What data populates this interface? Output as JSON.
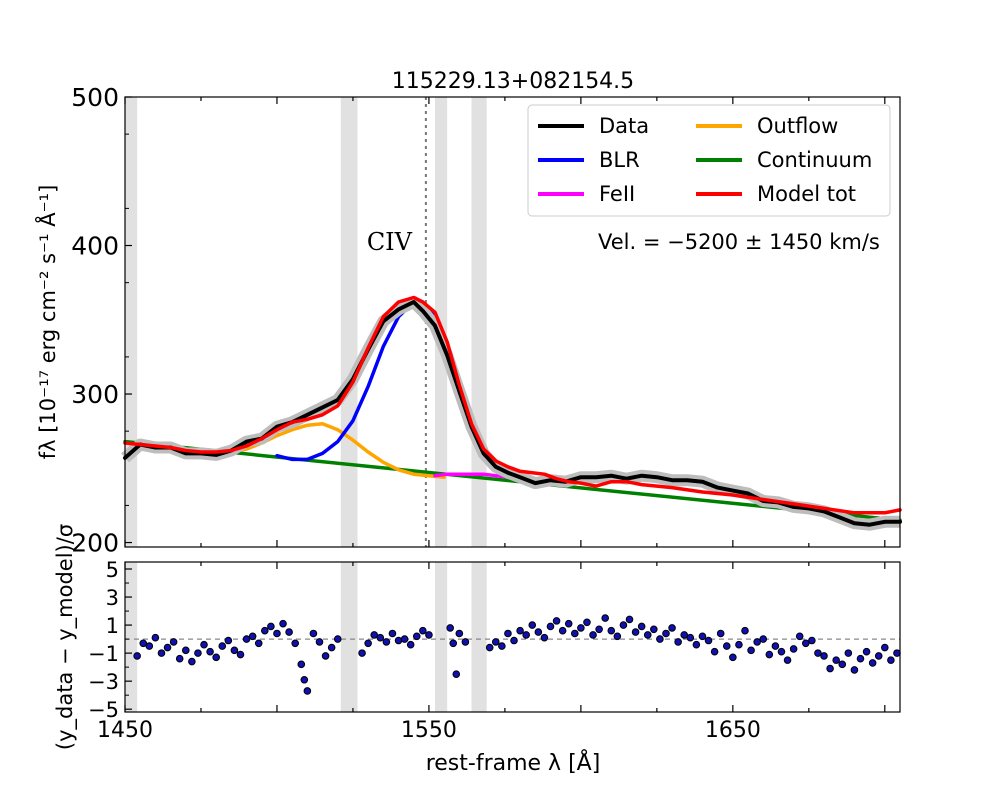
{
  "chart_data": {
    "type": "line",
    "title": "115229.13+082154.5",
    "xlabel": "rest-frame λ [Å]",
    "ylabel_top": "fλ [10⁻¹⁷ erg cm⁻² s⁻¹ Å⁻¹]",
    "ylabel_bottom": "(y_data − y_model)/σ",
    "xlim": [
      1450,
      1705
    ],
    "ylim_top": [
      197,
      500
    ],
    "ylim_bottom": [
      -5.2,
      5.5
    ],
    "xticks": [
      "1450",
      "1550",
      "1650"
    ],
    "xtick_values": [
      1450,
      1550,
      1650
    ],
    "yticks_top": [
      "200",
      "300",
      "400",
      "500"
    ],
    "ytick_values_top": [
      200,
      300,
      400,
      500
    ],
    "yticks_bottom": [
      "5",
      "3",
      "1",
      "−1",
      "−3",
      "−5"
    ],
    "ytick_values_bottom": [
      5,
      3,
      1,
      -1,
      -3,
      -5
    ],
    "line_label": "CIV",
    "line_label_pos": [
      1537,
      397
    ],
    "velocity_annotation": "Vel. = −5200 ± 1450 km/s",
    "line_center": 1549,
    "masked_regions": [
      [
        1450,
        1454
      ],
      [
        1521,
        1526.5
      ],
      [
        1552,
        1556
      ],
      [
        1564,
        1569
      ]
    ],
    "legend": [
      {
        "label": "Data",
        "color": "#000000"
      },
      {
        "label": "BLR",
        "color": "#0000ff"
      },
      {
        "label": "FeII",
        "color": "#ff00ff"
      },
      {
        "label": "Outflow",
        "color": "#ffa500"
      },
      {
        "label": "Continuum",
        "color": "#008000"
      },
      {
        "label": "Model tot",
        "color": "#ff0000"
      }
    ],
    "series": [
      {
        "name": "Data",
        "color": "#000000",
        "x": [
          1450,
          1455,
          1460,
          1465,
          1470,
          1475,
          1480,
          1485,
          1490,
          1495,
          1500,
          1505,
          1510,
          1515,
          1520,
          1525,
          1530,
          1535,
          1540,
          1545,
          1548,
          1552,
          1556,
          1560,
          1564,
          1568,
          1572,
          1576,
          1580,
          1585,
          1590,
          1595,
          1600,
          1605,
          1610,
          1615,
          1620,
          1625,
          1630,
          1635,
          1640,
          1645,
          1650,
          1655,
          1660,
          1665,
          1670,
          1675,
          1680,
          1685,
          1690,
          1695,
          1700,
          1705
        ],
        "y": [
          257,
          266,
          264,
          264,
          260,
          260,
          259,
          262,
          268,
          270,
          278,
          281,
          286,
          291,
          296,
          310,
          330,
          349,
          357,
          362,
          356,
          346,
          326,
          302,
          278,
          260,
          251,
          247,
          244,
          240,
          242,
          241,
          244,
          244,
          245,
          243,
          245,
          244,
          242,
          242,
          241,
          237,
          235,
          233,
          228,
          227,
          224,
          223,
          221,
          217,
          213,
          212,
          214,
          214
        ]
      },
      {
        "name": "BLR",
        "color": "#0000ff",
        "x": [
          1500,
          1505,
          1510,
          1515,
          1520,
          1525,
          1530,
          1535,
          1540,
          1545,
          1548,
          1552,
          1556,
          1560,
          1564,
          1568,
          1572,
          1576
        ],
        "y": [
          258.5,
          256,
          256,
          260,
          268,
          282,
          305,
          332,
          352,
          362,
          362,
          353,
          332,
          300,
          272,
          256,
          250,
          246
        ]
      },
      {
        "name": "Outflow",
        "color": "#ffa500",
        "x": [
          1485,
          1490,
          1495,
          1500,
          1505,
          1510,
          1515,
          1520,
          1525,
          1530,
          1535,
          1540,
          1545,
          1550,
          1555
        ],
        "y": [
          261,
          263,
          267,
          272,
          276,
          279,
          280,
          276,
          269,
          261,
          254,
          249,
          246,
          245,
          244
        ]
      },
      {
        "name": "FeII",
        "color": "#ff00ff",
        "x": [
          1552,
          1556,
          1560,
          1564,
          1568,
          1572,
          1576,
          1580
        ],
        "y": [
          245,
          246,
          246,
          246,
          246,
          245,
          244,
          242
        ]
      },
      {
        "name": "Continuum",
        "color": "#008000",
        "x": [
          1450,
          1705
        ],
        "y": [
          268,
          215
        ]
      },
      {
        "name": "Model tot",
        "color": "#ff0000",
        "x": [
          1450,
          1455,
          1460,
          1465,
          1470,
          1475,
          1480,
          1485,
          1490,
          1495,
          1500,
          1505,
          1510,
          1515,
          1520,
          1525,
          1530,
          1535,
          1540,
          1545,
          1548,
          1552,
          1556,
          1560,
          1564,
          1568,
          1572,
          1576,
          1580,
          1584,
          1588,
          1592,
          1596,
          1600,
          1605,
          1610,
          1615,
          1620,
          1625,
          1630,
          1640,
          1650,
          1660,
          1670,
          1680,
          1690,
          1700,
          1705
        ],
        "y": [
          267,
          266,
          265,
          264,
          262,
          261,
          261,
          262,
          265,
          270,
          276,
          281,
          283,
          286,
          292,
          308,
          331,
          352,
          362,
          365,
          362,
          355,
          335,
          306,
          280,
          263,
          255,
          251,
          248,
          247,
          246,
          243,
          241,
          240,
          238,
          241,
          241,
          239,
          238,
          237,
          234,
          232,
          229,
          226,
          223,
          220,
          220,
          222
        ]
      }
    ],
    "residuals": [
      {
        "x": 1454,
        "y": -1.2
      },
      {
        "x": 1456,
        "y": -0.3
      },
      {
        "x": 1458,
        "y": -0.5
      },
      {
        "x": 1460,
        "y": 0.1
      },
      {
        "x": 1462,
        "y": -1.0
      },
      {
        "x": 1464,
        "y": -0.6
      },
      {
        "x": 1466,
        "y": -0.2
      },
      {
        "x": 1468,
        "y": -1.4
      },
      {
        "x": 1470,
        "y": -0.8
      },
      {
        "x": 1472,
        "y": -1.6
      },
      {
        "x": 1474,
        "y": -1.0
      },
      {
        "x": 1476,
        "y": -0.4
      },
      {
        "x": 1478,
        "y": -0.9
      },
      {
        "x": 1480,
        "y": -1.3
      },
      {
        "x": 1482,
        "y": -0.5
      },
      {
        "x": 1484,
        "y": -0.1
      },
      {
        "x": 1486,
        "y": -0.8
      },
      {
        "x": 1488,
        "y": -1.1
      },
      {
        "x": 1490,
        "y": 0.0
      },
      {
        "x": 1492,
        "y": 0.2
      },
      {
        "x": 1494,
        "y": -0.3
      },
      {
        "x": 1496,
        "y": 0.6
      },
      {
        "x": 1498,
        "y": 0.9
      },
      {
        "x": 1500,
        "y": 0.4
      },
      {
        "x": 1502,
        "y": 1.1
      },
      {
        "x": 1504,
        "y": 0.5
      },
      {
        "x": 1506,
        "y": -0.3
      },
      {
        "x": 1508,
        "y": -1.8
      },
      {
        "x": 1509,
        "y": -2.9
      },
      {
        "x": 1510,
        "y": -3.7
      },
      {
        "x": 1512,
        "y": 0.4
      },
      {
        "x": 1514,
        "y": -0.2
      },
      {
        "x": 1516,
        "y": -1.2
      },
      {
        "x": 1518,
        "y": -0.6
      },
      {
        "x": 1520,
        "y": 0.0
      },
      {
        "x": 1528,
        "y": -1.0
      },
      {
        "x": 1530,
        "y": -0.3
      },
      {
        "x": 1532,
        "y": 0.3
      },
      {
        "x": 1534,
        "y": 0.1
      },
      {
        "x": 1536,
        "y": -0.2
      },
      {
        "x": 1538,
        "y": 0.4
      },
      {
        "x": 1540,
        "y": -0.1
      },
      {
        "x": 1542,
        "y": 0.0
      },
      {
        "x": 1544,
        "y": -0.4
      },
      {
        "x": 1546,
        "y": 0.2
      },
      {
        "x": 1548,
        "y": 0.6
      },
      {
        "x": 1550,
        "y": 0.3
      },
      {
        "x": 1557,
        "y": 0.8
      },
      {
        "x": 1558,
        "y": -0.3
      },
      {
        "x": 1559,
        "y": -2.5
      },
      {
        "x": 1560,
        "y": 0.4
      },
      {
        "x": 1562,
        "y": -0.2
      },
      {
        "x": 1570,
        "y": -0.6
      },
      {
        "x": 1572,
        "y": -0.2
      },
      {
        "x": 1574,
        "y": -0.5
      },
      {
        "x": 1576,
        "y": 0.4
      },
      {
        "x": 1578,
        "y": -0.1
      },
      {
        "x": 1580,
        "y": 0.6
      },
      {
        "x": 1582,
        "y": 0.3
      },
      {
        "x": 1584,
        "y": 1.0
      },
      {
        "x": 1586,
        "y": 0.5
      },
      {
        "x": 1588,
        "y": 0.1
      },
      {
        "x": 1590,
        "y": 0.9
      },
      {
        "x": 1592,
        "y": 1.3
      },
      {
        "x": 1594,
        "y": 0.6
      },
      {
        "x": 1596,
        "y": 1.1
      },
      {
        "x": 1598,
        "y": 0.4
      },
      {
        "x": 1600,
        "y": 0.8
      },
      {
        "x": 1602,
        "y": 1.2
      },
      {
        "x": 1604,
        "y": 0.3
      },
      {
        "x": 1606,
        "y": 0.7
      },
      {
        "x": 1608,
        "y": 1.5
      },
      {
        "x": 1610,
        "y": 0.6
      },
      {
        "x": 1612,
        "y": 0.2
      },
      {
        "x": 1614,
        "y": 1.0
      },
      {
        "x": 1616,
        "y": 1.4
      },
      {
        "x": 1618,
        "y": 0.5
      },
      {
        "x": 1620,
        "y": 0.9
      },
      {
        "x": 1622,
        "y": 0.3
      },
      {
        "x": 1624,
        "y": 0.7
      },
      {
        "x": 1626,
        "y": 0.0
      },
      {
        "x": 1628,
        "y": 0.4
      },
      {
        "x": 1630,
        "y": 0.8
      },
      {
        "x": 1632,
        "y": -0.2
      },
      {
        "x": 1634,
        "y": 0.3
      },
      {
        "x": 1636,
        "y": 0.1
      },
      {
        "x": 1638,
        "y": -0.4
      },
      {
        "x": 1640,
        "y": 0.2
      },
      {
        "x": 1642,
        "y": -0.1
      },
      {
        "x": 1644,
        "y": -0.9
      },
      {
        "x": 1646,
        "y": 0.4
      },
      {
        "x": 1648,
        "y": -0.5
      },
      {
        "x": 1650,
        "y": -1.3
      },
      {
        "x": 1652,
        "y": -0.4
      },
      {
        "x": 1654,
        "y": 0.6
      },
      {
        "x": 1656,
        "y": -0.8
      },
      {
        "x": 1658,
        "y": -0.2
      },
      {
        "x": 1660,
        "y": 0.0
      },
      {
        "x": 1662,
        "y": -1.1
      },
      {
        "x": 1664,
        "y": -0.5
      },
      {
        "x": 1666,
        "y": -0.9
      },
      {
        "x": 1668,
        "y": -1.5
      },
      {
        "x": 1670,
        "y": -0.7
      },
      {
        "x": 1672,
        "y": 0.2
      },
      {
        "x": 1674,
        "y": -0.3
      },
      {
        "x": 1676,
        "y": -0.1
      },
      {
        "x": 1678,
        "y": -1.0
      },
      {
        "x": 1680,
        "y": -1.2
      },
      {
        "x": 1682,
        "y": -2.1
      },
      {
        "x": 1684,
        "y": -1.5
      },
      {
        "x": 1686,
        "y": -1.8
      },
      {
        "x": 1688,
        "y": -1.0
      },
      {
        "x": 1690,
        "y": -2.2
      },
      {
        "x": 1692,
        "y": -1.4
      },
      {
        "x": 1694,
        "y": -0.9
      },
      {
        "x": 1696,
        "y": -1.7
      },
      {
        "x": 1698,
        "y": -1.2
      },
      {
        "x": 1700,
        "y": -0.6
      },
      {
        "x": 1702,
        "y": -1.5
      },
      {
        "x": 1704,
        "y": -1.0
      }
    ]
  }
}
